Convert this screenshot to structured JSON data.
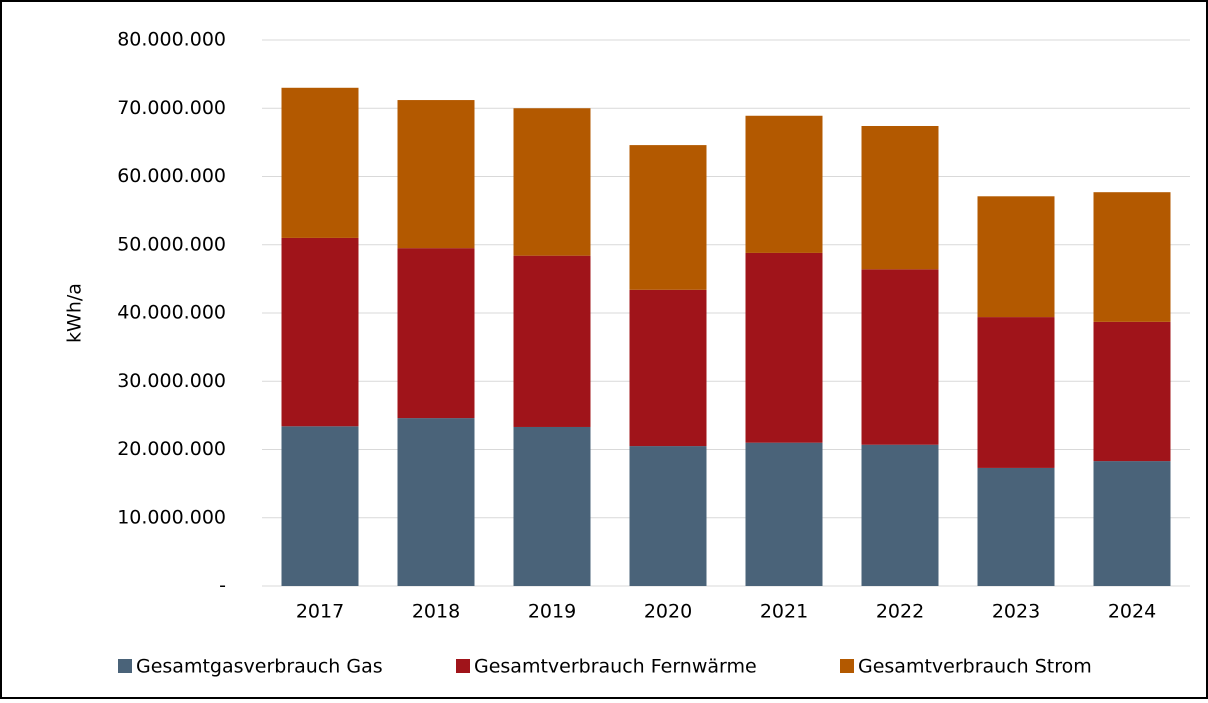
{
  "chart_data": {
    "type": "stacked_bar",
    "y_label": "kWh/a",
    "categories": [
      "2017",
      "2018",
      "2019",
      "2020",
      "2021",
      "2022",
      "2023",
      "2024"
    ],
    "series": [
      {
        "name": "Gesamtgasverbrauch Gas",
        "color": "#4a6379",
        "values": [
          23400000,
          24600000,
          23300000,
          20500000,
          21000000,
          20700000,
          17300000,
          18300000
        ]
      },
      {
        "name": "Gesamtverbrauch Fernwärme",
        "color": "#a0141a",
        "values": [
          27600000,
          24900000,
          25100000,
          22900000,
          27800000,
          25700000,
          22100000,
          20400000
        ]
      },
      {
        "name": "Gesamtverbrauch Strom",
        "color": "#b35900",
        "values": [
          22000000,
          21700000,
          21600000,
          21200000,
          20100000,
          21000000,
          17700000,
          19000000
        ]
      }
    ],
    "ylim": [
      0,
      80000000
    ],
    "yticks": [
      {
        "value": 0,
        "label": "-"
      },
      {
        "value": 10000000,
        "label": "10.000.000"
      },
      {
        "value": 20000000,
        "label": "20.000.000"
      },
      {
        "value": 30000000,
        "label": "30.000.000"
      },
      {
        "value": 40000000,
        "label": "40.000.000"
      },
      {
        "value": 50000000,
        "label": "50.000.000"
      },
      {
        "value": 60000000,
        "label": "60.000.000"
      },
      {
        "value": 70000000,
        "label": "70.000.000"
      },
      {
        "value": 80000000,
        "label": "80.000.000"
      }
    ],
    "grid": true,
    "legend": "bottom"
  }
}
